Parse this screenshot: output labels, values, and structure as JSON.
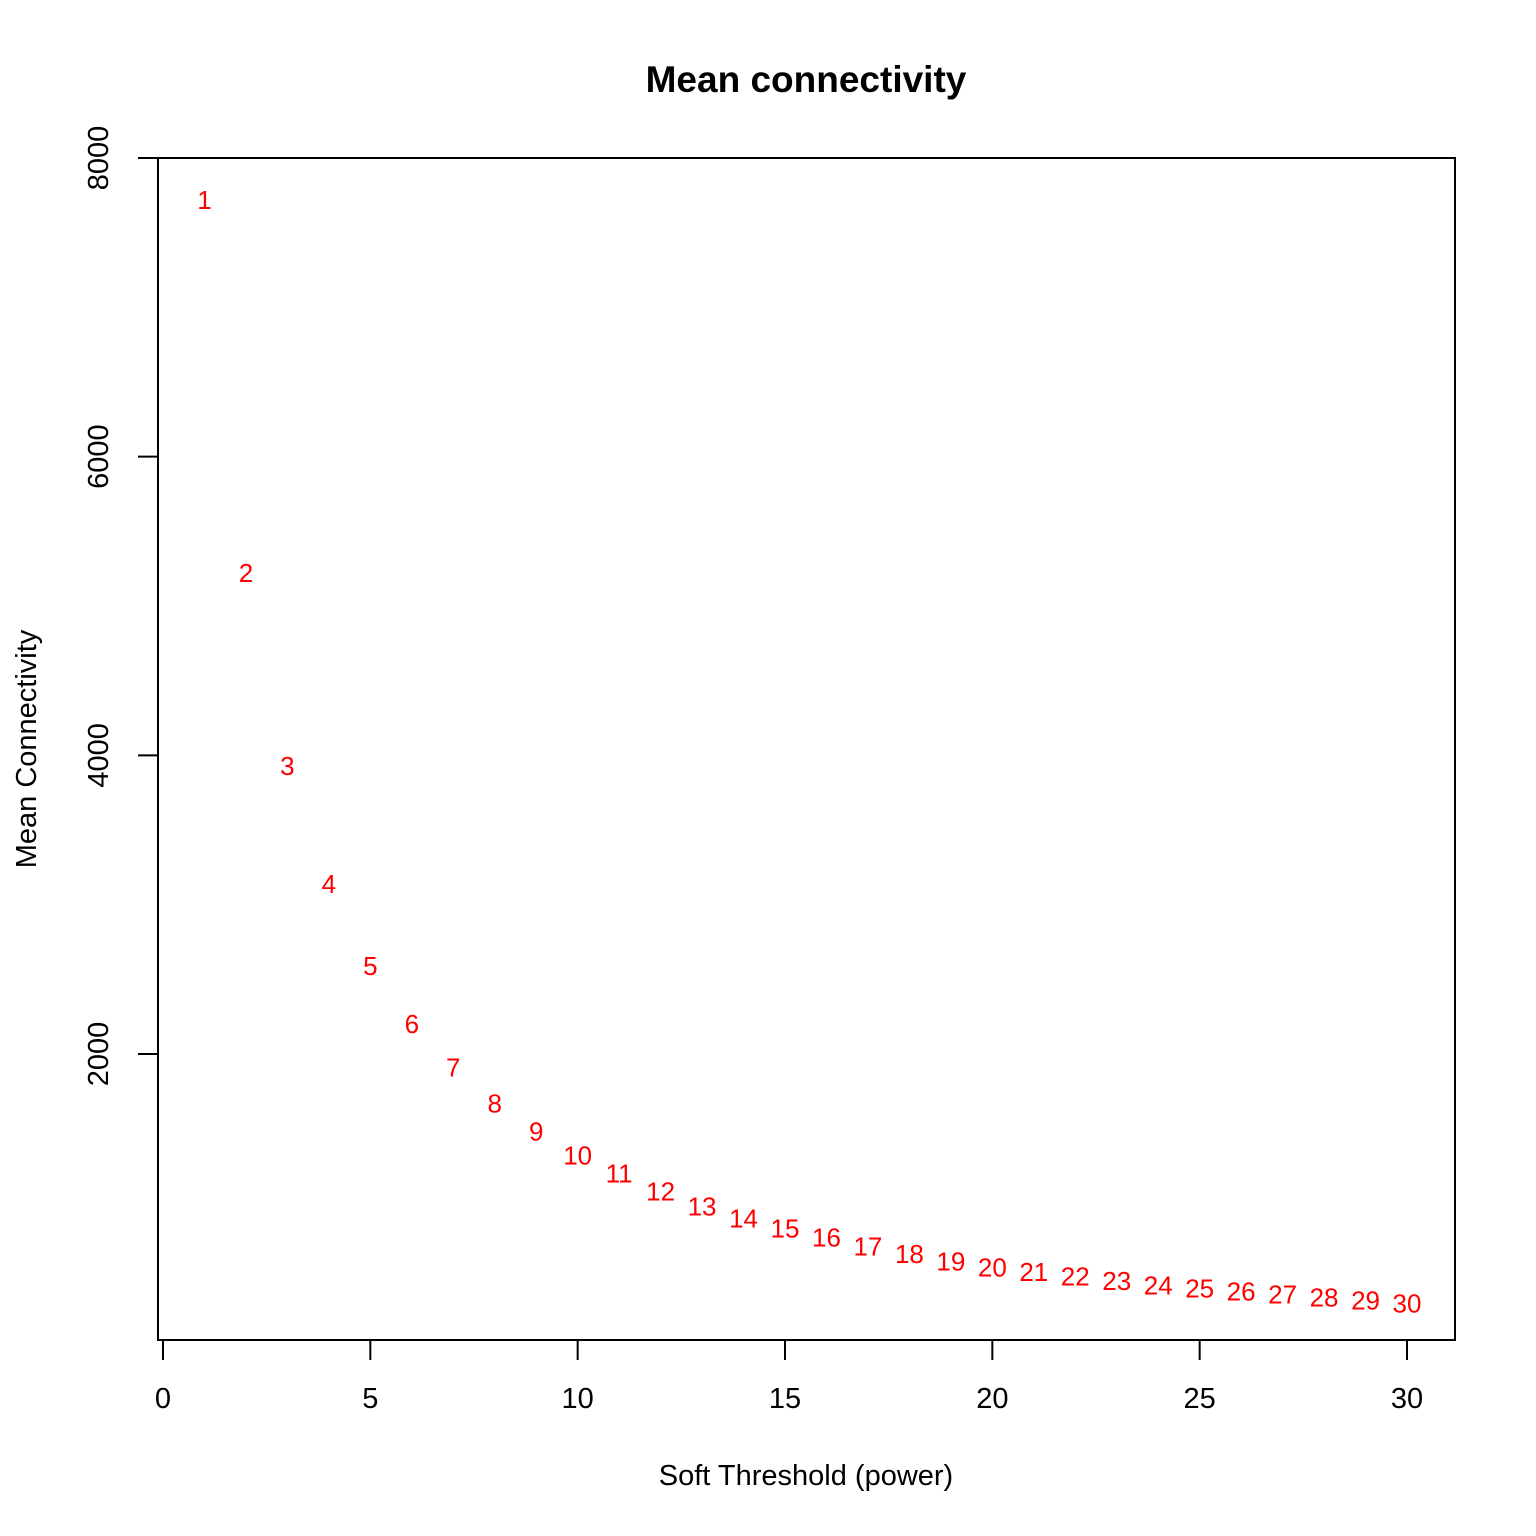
{
  "chart_data": {
    "type": "scatter",
    "title": "Mean connectivity",
    "xlabel": "Soft Threshold (power)",
    "ylabel": "Mean Connectivity",
    "xlim": [
      0,
      30
    ],
    "ylim": [
      0,
      8000
    ],
    "xticks": [
      0,
      5,
      10,
      15,
      20,
      25,
      30
    ],
    "yticks": [
      2000,
      4000,
      6000,
      8000
    ],
    "grid": false,
    "marker_color": "#ff0000",
    "series": [
      {
        "x": [
          1,
          2,
          3,
          4,
          5,
          6,
          7,
          8,
          9,
          10,
          11,
          12,
          13,
          14,
          15,
          16,
          17,
          18,
          19,
          20,
          21,
          22,
          23,
          24,
          25,
          26,
          27,
          28,
          29,
          30
        ],
        "y": [
          7720,
          5220,
          3930,
          3140,
          2590,
          2200,
          1910,
          1670,
          1480,
          1320,
          1200,
          1080,
          980,
          900,
          830,
          770,
          710,
          660,
          610,
          570,
          540,
          510,
          480,
          450,
          430,
          410,
          390,
          370,
          350,
          330
        ],
        "labels": [
          "1",
          "2",
          "3",
          "4",
          "5",
          "6",
          "7",
          "8",
          "9",
          "10",
          "11",
          "12",
          "13",
          "14",
          "15",
          "16",
          "17",
          "18",
          "19",
          "20",
          "21",
          "22",
          "23",
          "24",
          "25",
          "26",
          "27",
          "28",
          "29",
          "30"
        ]
      }
    ]
  }
}
